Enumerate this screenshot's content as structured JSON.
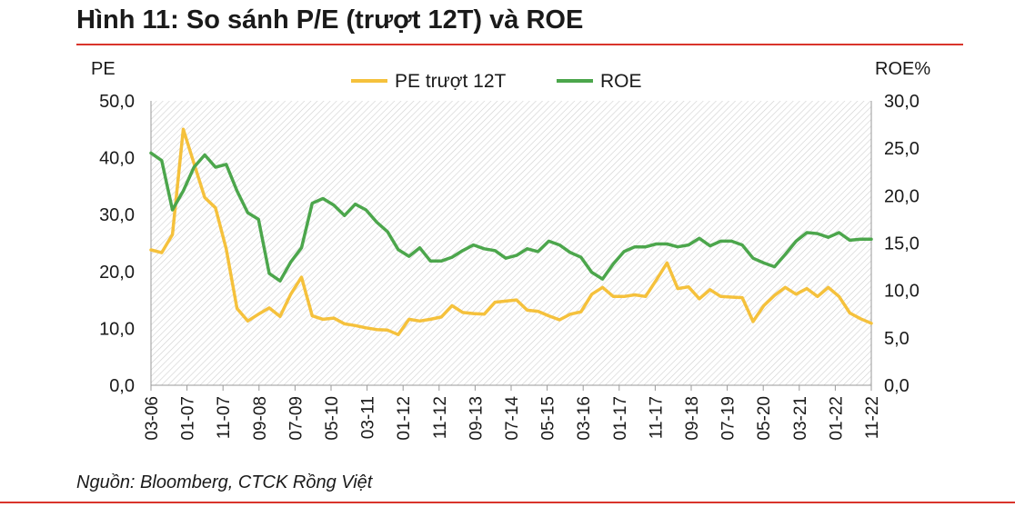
{
  "title": "Hình 11: So sánh P/E (trượt 12T) và ROE",
  "source": "Nguồn: Bloomberg, CTCK Rồng Việt",
  "colors": {
    "pe": "#f5c13c",
    "roe": "#4ca64c",
    "accent_rule": "#d9342b",
    "hatch": "#c9c9c9"
  },
  "chart_data": {
    "type": "line",
    "left_axis_title": "PE",
    "right_axis_title": "ROE%",
    "left_ylim": [
      0,
      50
    ],
    "right_ylim": [
      0,
      30
    ],
    "left_ticks": [
      "0,0",
      "10,0",
      "20,0",
      "30,0",
      "40,0",
      "50,0"
    ],
    "right_ticks": [
      "0,0",
      "5,0",
      "10,0",
      "15,0",
      "20,0",
      "25,0",
      "30,0"
    ],
    "x_tick_labels": [
      "03-06",
      "01-07",
      "11-07",
      "09-08",
      "07-09",
      "05-10",
      "03-11",
      "01-12",
      "11-12",
      "09-13",
      "07-14",
      "05-15",
      "03-16",
      "01-17",
      "11-17",
      "09-18",
      "07-19",
      "05-20",
      "03-21",
      "01-22",
      "11-22"
    ],
    "legend": [
      "PE trượt 12T",
      "ROE"
    ],
    "legend_position": "top",
    "x_start": "03-06",
    "x_end": "11-22",
    "background": "hatched",
    "series": [
      {
        "name": "PE trượt 12T",
        "axis": "left",
        "values": [
          23.8,
          23.3,
          26.5,
          45.0,
          39.0,
          33.0,
          31.2,
          24.0,
          13.5,
          11.3,
          12.5,
          13.6,
          12.1,
          16.0,
          19.0,
          12.2,
          11.6,
          11.8,
          10.8,
          10.5,
          10.1,
          9.8,
          9.7,
          8.9,
          11.6,
          11.3,
          11.6,
          12.0,
          14.0,
          12.8,
          12.6,
          12.5,
          14.6,
          14.8,
          15.0,
          13.2,
          13.0,
          12.2,
          11.5,
          12.5,
          12.9,
          16.0,
          17.2,
          15.6,
          15.6,
          15.9,
          15.6,
          18.5,
          21.5,
          17.0,
          17.3,
          15.2,
          16.8,
          15.6,
          15.5,
          15.4,
          11.2,
          14.0,
          15.8,
          17.2,
          16.0,
          17.0,
          15.6,
          17.2,
          15.6,
          12.7,
          11.7,
          10.9
        ]
      },
      {
        "name": "ROE",
        "axis": "right",
        "values": [
          24.5,
          23.7,
          18.5,
          20.5,
          23.0,
          24.3,
          23.0,
          23.3,
          20.5,
          18.2,
          17.5,
          11.8,
          11.0,
          13.0,
          14.5,
          19.2,
          19.7,
          19.0,
          17.9,
          19.1,
          18.5,
          17.2,
          16.2,
          14.3,
          13.6,
          14.5,
          13.1,
          13.1,
          13.5,
          14.2,
          14.8,
          14.4,
          14.2,
          13.4,
          13.7,
          14.4,
          14.1,
          15.2,
          14.8,
          14.0,
          13.5,
          11.9,
          11.2,
          12.8,
          14.1,
          14.6,
          14.6,
          14.9,
          14.9,
          14.6,
          14.8,
          15.5,
          14.7,
          15.2,
          15.2,
          14.8,
          13.4,
          12.9,
          12.5,
          13.8,
          15.2,
          16.1,
          16.0,
          15.6,
          16.1,
          15.3,
          15.4,
          15.4
        ]
      }
    ]
  }
}
